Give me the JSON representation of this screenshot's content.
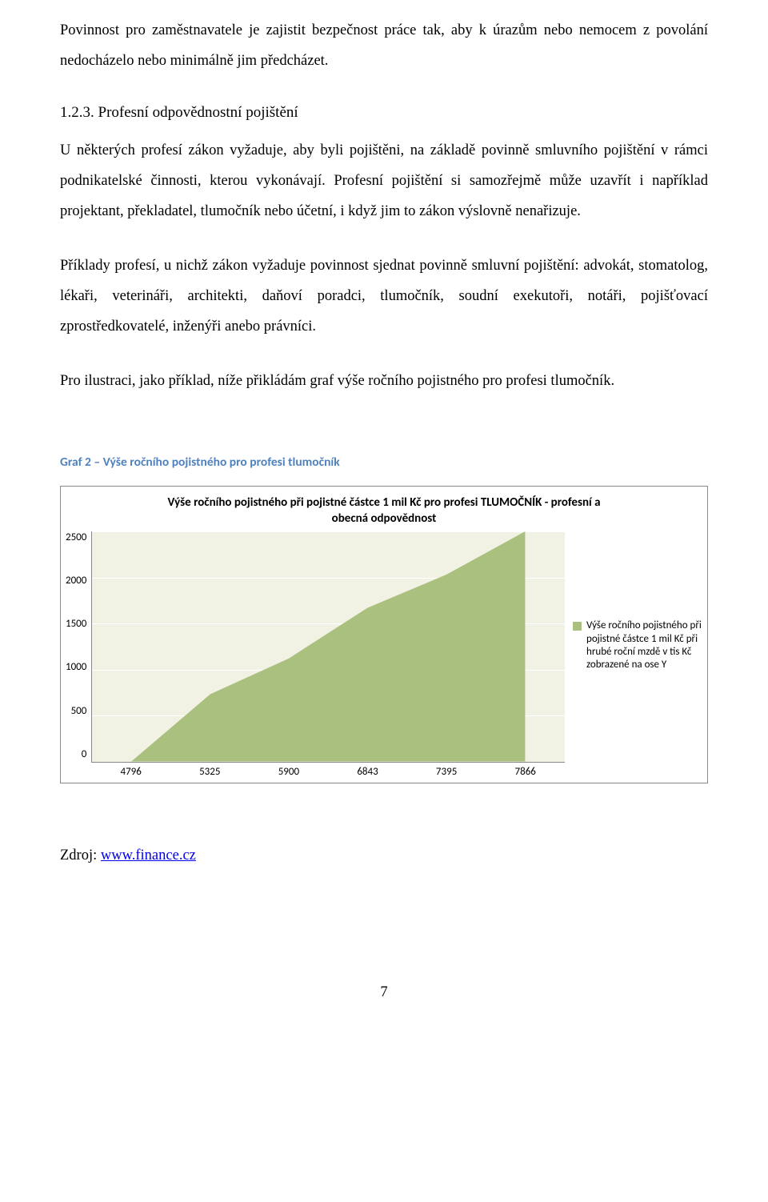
{
  "paragraphs": {
    "p1": "Povinnost pro zaměstnavatele je zajistit bezpečnost práce tak, aby k úrazům nebo nemocem z povolání nedocházelo nebo minimálně jim předcházet.",
    "heading": "1.2.3. Profesní odpovědnostní pojištění",
    "p2": "U některých profesí zákon vyžaduje, aby byli pojištěni, na základě povinně smluvního pojištění v rámci podnikatelské činnosti, kterou vykonávají. Profesní pojištění si samozřejmě může uzavřít i například projektant, překladatel, tlumočník nebo účetní, i když jim to zákon výslovně nenařizuje.",
    "p3": "Příklady profesí, u nichž zákon vyžaduje povinnost sjednat povinně smluvní pojištění: advokát, stomatolog, lékaři, veterináři, architekti, daňoví poradci, tlumočník, soudní exekutoři, notáři, pojišťovací zprostředkovatelé, inženýři anebo právníci.",
    "p4": "Pro ilustraci, jako příklad, níže přikládám graf výše ročního pojistného pro profesi tlumočník."
  },
  "caption": "Graf 2 – Výše ročního pojistného pro profesi tlumočník",
  "chart": {
    "type": "area",
    "title": "Výše ročního pojistného při pojistné částce 1 mil Kč pro profesi TLUMOČNÍK  - profesní a obecná odpovědnost",
    "x_categories": [
      "4796",
      "5325",
      "5900",
      "6843",
      "7395",
      "7866"
    ],
    "y_values": [
      0,
      730,
      1120,
      1670,
      2030,
      2500
    ],
    "ymin": 0,
    "ymax": 2500,
    "y_ticks": [
      "2500",
      "2000",
      "1500",
      "1000",
      "500",
      "0"
    ],
    "series_fill": "#a9c07e",
    "plot_bg": "#f2f2e4",
    "grid_color": "#ffffff",
    "axis_color": "#888888",
    "title_fontsize": 15,
    "tick_fontsize": 13,
    "legend_label": "Výše ročního pojistného při pojistné částce 1 mil Kč při hrubé roční mzdě v tis Kč zobrazené na ose Y"
  },
  "source": {
    "prefix": "Zdroj: ",
    "link_text": "www.finance.cz"
  },
  "page_number": "7"
}
